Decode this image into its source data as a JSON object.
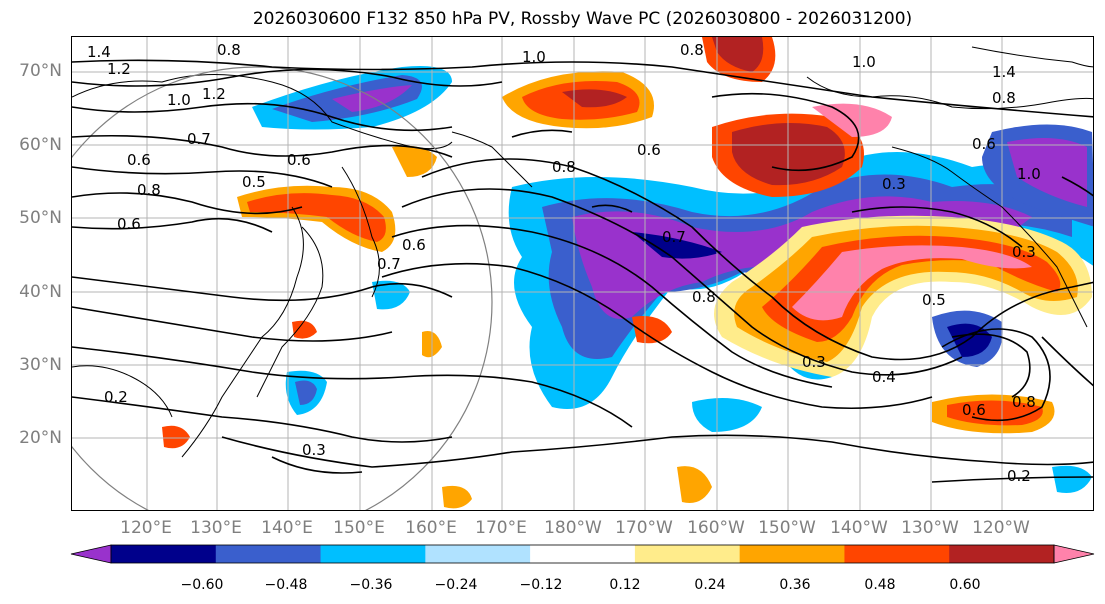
{
  "title": "2026030600 F132 850 hPa PV, Rossby Wave PC (2026030800 - 2026031200)",
  "lat_labels": [
    "70°N",
    "60°N",
    "50°N",
    "40°N",
    "30°N",
    "20°N"
  ],
  "lon_labels": [
    "120°E",
    "130°E",
    "140°E",
    "150°E",
    "160°E",
    "170°E",
    "180°W",
    "170°W",
    "160°W",
    "150°W",
    "140°W",
    "130°W",
    "120°W"
  ],
  "colorbar": {
    "colors": [
      "#9932CC",
      "#00008B",
      "#3A5FCD",
      "#00BFFF",
      "#B0E2FF",
      "#FFFFFF",
      "#FFEC8B",
      "#FFA500",
      "#FF4500",
      "#B22222",
      "#FF82AB"
    ],
    "tick_labels": [
      "−0.60",
      "−0.48",
      "−0.36",
      "−0.24",
      "−0.12",
      "0.12",
      "0.24",
      "0.36",
      "0.48",
      "0.60"
    ]
  },
  "contour_labels": [
    "1.4",
    "1.2",
    "1.0",
    "1.2",
    "0.7",
    "0.6",
    "0.8",
    "0.6",
    "0.6",
    "0.5",
    "0.7",
    "0.6",
    "1.0",
    "0.8",
    "0.8",
    "0.6",
    "0.7",
    "0.8",
    "1.0",
    "1.4",
    "0.8",
    "0.6",
    "1.0",
    "0.8",
    "0.3",
    "0.3",
    "0.5",
    "0.4",
    "0.3",
    "0.6",
    "0.8",
    "0.2",
    "0.3",
    "0.2"
  ]
}
